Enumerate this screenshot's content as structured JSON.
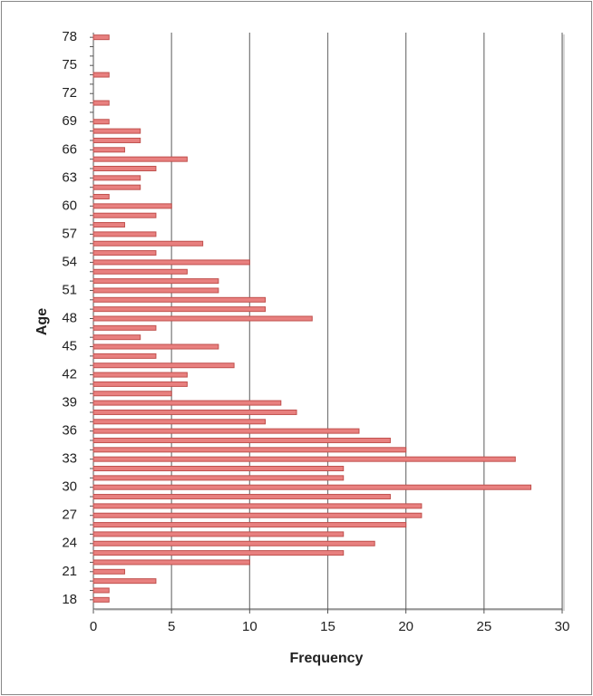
{
  "chart_data": {
    "type": "hbar",
    "xlabel": "Frequency",
    "ylabel": "Age",
    "categories": [
      18,
      null,
      null,
      21,
      null,
      null,
      24,
      null,
      null,
      27,
      null,
      null,
      30,
      null,
      null,
      33,
      null,
      null,
      36,
      null,
      null,
      39,
      null,
      null,
      42,
      null,
      null,
      45,
      null,
      null,
      48,
      null,
      null,
      51,
      null,
      null,
      54,
      null,
      null,
      57,
      null,
      null,
      60,
      null,
      null,
      63,
      null,
      null,
      66,
      null,
      null,
      69,
      null,
      null,
      72,
      null,
      null,
      75,
      null,
      null,
      78
    ],
    "values": [
      1,
      1,
      4,
      2,
      10,
      16,
      18,
      16,
      20,
      21,
      21,
      19,
      28,
      16,
      16,
      27,
      20,
      19,
      17,
      11,
      13,
      12,
      5,
      6,
      6,
      9,
      4,
      8,
      3,
      4,
      14,
      11,
      11,
      8,
      8,
      6,
      10,
      4,
      7,
      4,
      2,
      4,
      5,
      1,
      3,
      3,
      4,
      6,
      2,
      3,
      3,
      1,
      0,
      1,
      0,
      0,
      1,
      0,
      0,
      0,
      1
    ],
    "color": "#e8807f",
    "edge_color": "#c0504d",
    "xlim": [
      0,
      30
    ],
    "xticks": [
      0,
      5,
      10,
      15,
      20,
      25,
      30
    ],
    "grid": true
  }
}
